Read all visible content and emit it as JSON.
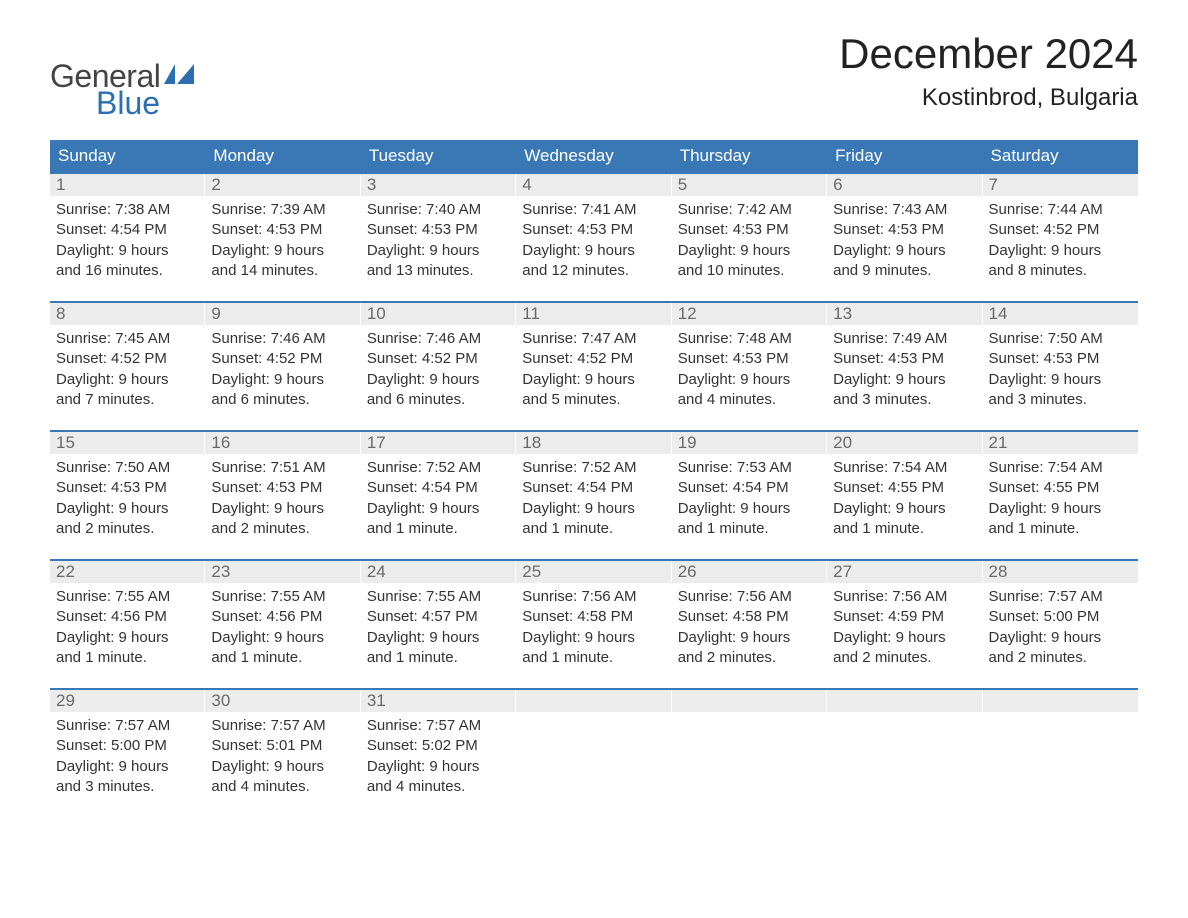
{
  "logo": {
    "text1": "General",
    "text2": "Blue"
  },
  "title": "December 2024",
  "location": "Kostinbrod, Bulgaria",
  "colors": {
    "header_bg": "#3a78b5",
    "header_text": "#ffffff",
    "daynum_bg": "#ececec",
    "daynum_text": "#6a6a6a",
    "body_text": "#333333",
    "logo_blue": "#2c6fb0",
    "logo_gray": "#444444",
    "week_border": "#3a78b5",
    "page_bg": "#ffffff"
  },
  "day_headers": [
    "Sunday",
    "Monday",
    "Tuesday",
    "Wednesday",
    "Thursday",
    "Friday",
    "Saturday"
  ],
  "weeks": [
    [
      {
        "n": "1",
        "sunrise": "Sunrise: 7:38 AM",
        "sunset": "Sunset: 4:54 PM",
        "dl1": "Daylight: 9 hours",
        "dl2": "and 16 minutes."
      },
      {
        "n": "2",
        "sunrise": "Sunrise: 7:39 AM",
        "sunset": "Sunset: 4:53 PM",
        "dl1": "Daylight: 9 hours",
        "dl2": "and 14 minutes."
      },
      {
        "n": "3",
        "sunrise": "Sunrise: 7:40 AM",
        "sunset": "Sunset: 4:53 PM",
        "dl1": "Daylight: 9 hours",
        "dl2": "and 13 minutes."
      },
      {
        "n": "4",
        "sunrise": "Sunrise: 7:41 AM",
        "sunset": "Sunset: 4:53 PM",
        "dl1": "Daylight: 9 hours",
        "dl2": "and 12 minutes."
      },
      {
        "n": "5",
        "sunrise": "Sunrise: 7:42 AM",
        "sunset": "Sunset: 4:53 PM",
        "dl1": "Daylight: 9 hours",
        "dl2": "and 10 minutes."
      },
      {
        "n": "6",
        "sunrise": "Sunrise: 7:43 AM",
        "sunset": "Sunset: 4:53 PM",
        "dl1": "Daylight: 9 hours",
        "dl2": "and 9 minutes."
      },
      {
        "n": "7",
        "sunrise": "Sunrise: 7:44 AM",
        "sunset": "Sunset: 4:52 PM",
        "dl1": "Daylight: 9 hours",
        "dl2": "and 8 minutes."
      }
    ],
    [
      {
        "n": "8",
        "sunrise": "Sunrise: 7:45 AM",
        "sunset": "Sunset: 4:52 PM",
        "dl1": "Daylight: 9 hours",
        "dl2": "and 7 minutes."
      },
      {
        "n": "9",
        "sunrise": "Sunrise: 7:46 AM",
        "sunset": "Sunset: 4:52 PM",
        "dl1": "Daylight: 9 hours",
        "dl2": "and 6 minutes."
      },
      {
        "n": "10",
        "sunrise": "Sunrise: 7:46 AM",
        "sunset": "Sunset: 4:52 PM",
        "dl1": "Daylight: 9 hours",
        "dl2": "and 6 minutes."
      },
      {
        "n": "11",
        "sunrise": "Sunrise: 7:47 AM",
        "sunset": "Sunset: 4:52 PM",
        "dl1": "Daylight: 9 hours",
        "dl2": "and 5 minutes."
      },
      {
        "n": "12",
        "sunrise": "Sunrise: 7:48 AM",
        "sunset": "Sunset: 4:53 PM",
        "dl1": "Daylight: 9 hours",
        "dl2": "and 4 minutes."
      },
      {
        "n": "13",
        "sunrise": "Sunrise: 7:49 AM",
        "sunset": "Sunset: 4:53 PM",
        "dl1": "Daylight: 9 hours",
        "dl2": "and 3 minutes."
      },
      {
        "n": "14",
        "sunrise": "Sunrise: 7:50 AM",
        "sunset": "Sunset: 4:53 PM",
        "dl1": "Daylight: 9 hours",
        "dl2": "and 3 minutes."
      }
    ],
    [
      {
        "n": "15",
        "sunrise": "Sunrise: 7:50 AM",
        "sunset": "Sunset: 4:53 PM",
        "dl1": "Daylight: 9 hours",
        "dl2": "and 2 minutes."
      },
      {
        "n": "16",
        "sunrise": "Sunrise: 7:51 AM",
        "sunset": "Sunset: 4:53 PM",
        "dl1": "Daylight: 9 hours",
        "dl2": "and 2 minutes."
      },
      {
        "n": "17",
        "sunrise": "Sunrise: 7:52 AM",
        "sunset": "Sunset: 4:54 PM",
        "dl1": "Daylight: 9 hours",
        "dl2": "and 1 minute."
      },
      {
        "n": "18",
        "sunrise": "Sunrise: 7:52 AM",
        "sunset": "Sunset: 4:54 PM",
        "dl1": "Daylight: 9 hours",
        "dl2": "and 1 minute."
      },
      {
        "n": "19",
        "sunrise": "Sunrise: 7:53 AM",
        "sunset": "Sunset: 4:54 PM",
        "dl1": "Daylight: 9 hours",
        "dl2": "and 1 minute."
      },
      {
        "n": "20",
        "sunrise": "Sunrise: 7:54 AM",
        "sunset": "Sunset: 4:55 PM",
        "dl1": "Daylight: 9 hours",
        "dl2": "and 1 minute."
      },
      {
        "n": "21",
        "sunrise": "Sunrise: 7:54 AM",
        "sunset": "Sunset: 4:55 PM",
        "dl1": "Daylight: 9 hours",
        "dl2": "and 1 minute."
      }
    ],
    [
      {
        "n": "22",
        "sunrise": "Sunrise: 7:55 AM",
        "sunset": "Sunset: 4:56 PM",
        "dl1": "Daylight: 9 hours",
        "dl2": "and 1 minute."
      },
      {
        "n": "23",
        "sunrise": "Sunrise: 7:55 AM",
        "sunset": "Sunset: 4:56 PM",
        "dl1": "Daylight: 9 hours",
        "dl2": "and 1 minute."
      },
      {
        "n": "24",
        "sunrise": "Sunrise: 7:55 AM",
        "sunset": "Sunset: 4:57 PM",
        "dl1": "Daylight: 9 hours",
        "dl2": "and 1 minute."
      },
      {
        "n": "25",
        "sunrise": "Sunrise: 7:56 AM",
        "sunset": "Sunset: 4:58 PM",
        "dl1": "Daylight: 9 hours",
        "dl2": "and 1 minute."
      },
      {
        "n": "26",
        "sunrise": "Sunrise: 7:56 AM",
        "sunset": "Sunset: 4:58 PM",
        "dl1": "Daylight: 9 hours",
        "dl2": "and 2 minutes."
      },
      {
        "n": "27",
        "sunrise": "Sunrise: 7:56 AM",
        "sunset": "Sunset: 4:59 PM",
        "dl1": "Daylight: 9 hours",
        "dl2": "and 2 minutes."
      },
      {
        "n": "28",
        "sunrise": "Sunrise: 7:57 AM",
        "sunset": "Sunset: 5:00 PM",
        "dl1": "Daylight: 9 hours",
        "dl2": "and 2 minutes."
      }
    ],
    [
      {
        "n": "29",
        "sunrise": "Sunrise: 7:57 AM",
        "sunset": "Sunset: 5:00 PM",
        "dl1": "Daylight: 9 hours",
        "dl2": "and 3 minutes."
      },
      {
        "n": "30",
        "sunrise": "Sunrise: 7:57 AM",
        "sunset": "Sunset: 5:01 PM",
        "dl1": "Daylight: 9 hours",
        "dl2": "and 4 minutes."
      },
      {
        "n": "31",
        "sunrise": "Sunrise: 7:57 AM",
        "sunset": "Sunset: 5:02 PM",
        "dl1": "Daylight: 9 hours",
        "dl2": "and 4 minutes."
      },
      {
        "empty": true
      },
      {
        "empty": true
      },
      {
        "empty": true
      },
      {
        "empty": true
      }
    ]
  ]
}
